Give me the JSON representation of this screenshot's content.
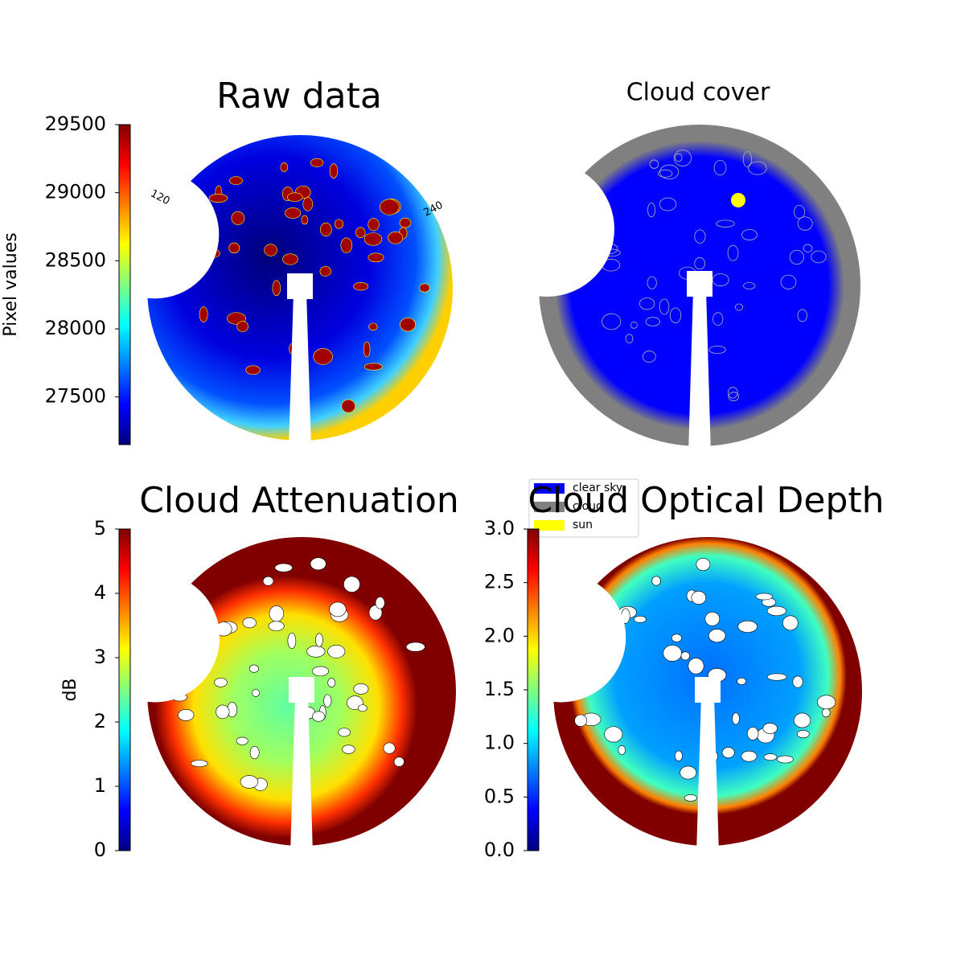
{
  "chart_data": [
    {
      "type": "image",
      "title": "Raw data",
      "colormap": "jet",
      "colorbar_label": "Pixel values",
      "ylim": [
        27150,
        29500
      ],
      "yticks": [
        27500,
        28000,
        28500,
        29000,
        29500
      ],
      "annotations": [
        "120",
        "240"
      ]
    },
    {
      "type": "image",
      "title": "Cloud cover",
      "series": [
        {
          "name": "clear sky",
          "color": "#0000ff"
        },
        {
          "name": "cloud",
          "color": "#808080"
        },
        {
          "name": "sun",
          "color": "#ffff00"
        }
      ]
    },
    {
      "type": "image",
      "title": "Cloud Attenuation",
      "colormap": "jet",
      "colorbar_label": "dB",
      "ylim": [
        0,
        5
      ],
      "yticks": [
        0,
        1,
        2,
        3,
        4,
        5
      ]
    },
    {
      "type": "image",
      "title": "Cloud Optical Depth",
      "colormap": "jet",
      "ylim": [
        0,
        3
      ],
      "yticks": [
        {
          "value": 0,
          "label": "0.0"
        },
        0.5,
        {
          "value": 1,
          "label": "1.0"
        },
        1.5,
        {
          "value": 2,
          "label": "2.0"
        },
        2.5,
        {
          "value": 3,
          "label": "3.0"
        }
      ]
    }
  ]
}
